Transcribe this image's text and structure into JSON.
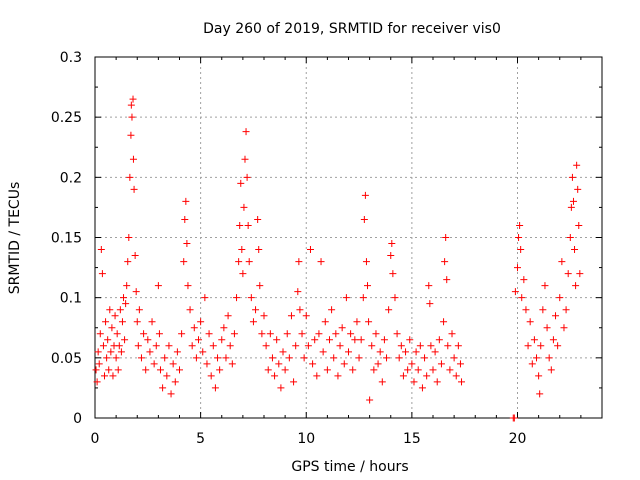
{
  "chart_data": {
    "type": "scatter",
    "title": "Day 260 of 2019, SRMTID for receiver vis0",
    "xlabel": "GPS time / hours",
    "ylabel": "SRMTID / TECUs",
    "xlim": [
      0,
      24
    ],
    "ylim": [
      0,
      0.3
    ],
    "xticks": [
      0,
      5,
      10,
      15,
      20
    ],
    "xtick_labels": [
      "0",
      "5",
      "10",
      "15",
      "20"
    ],
    "yticks": [
      0,
      0.05,
      0.1,
      0.15,
      0.2,
      0.25,
      0.3
    ],
    "ytick_labels": [
      "0",
      "0.05",
      "0.1",
      "0.15",
      "0.2",
      "0.25",
      "0.3"
    ],
    "grid": true,
    "marker": "+",
    "color": "#ff0000",
    "series": [
      {
        "name": "SRMTID",
        "points": [
          [
            0.05,
            0.04
          ],
          [
            0.1,
            0.03
          ],
          [
            0.15,
            0.055
          ],
          [
            0.2,
            0.045
          ],
          [
            0.25,
            0.07
          ],
          [
            0.3,
            0.14
          ],
          [
            0.35,
            0.12
          ],
          [
            0.4,
            0.06
          ],
          [
            0.45,
            0.035
          ],
          [
            0.5,
            0.08
          ],
          [
            0.55,
            0.05
          ],
          [
            0.6,
            0.065
          ],
          [
            0.65,
            0.04
          ],
          [
            0.7,
            0.09
          ],
          [
            0.75,
            0.055
          ],
          [
            0.8,
            0.075
          ],
          [
            0.85,
            0.035
          ],
          [
            0.9,
            0.06
          ],
          [
            0.95,
            0.085
          ],
          [
            1.0,
            0.05
          ],
          [
            1.05,
            0.07
          ],
          [
            1.1,
            0.04
          ],
          [
            1.15,
            0.06
          ],
          [
            1.2,
            0.09
          ],
          [
            1.25,
            0.055
          ],
          [
            1.3,
            0.08
          ],
          [
            1.35,
            0.1
          ],
          [
            1.4,
            0.065
          ],
          [
            1.45,
            0.095
          ],
          [
            1.5,
            0.11
          ],
          [
            1.55,
            0.13
          ],
          [
            1.6,
            0.15
          ],
          [
            1.65,
            0.2
          ],
          [
            1.7,
            0.235
          ],
          [
            1.72,
            0.26
          ],
          [
            1.75,
            0.25
          ],
          [
            1.8,
            0.265
          ],
          [
            1.82,
            0.215
          ],
          [
            1.85,
            0.19
          ],
          [
            1.9,
            0.135
          ],
          [
            1.95,
            0.105
          ],
          [
            2.0,
            0.08
          ],
          [
            2.05,
            0.06
          ],
          [
            2.1,
            0.09
          ],
          [
            2.2,
            0.05
          ],
          [
            2.3,
            0.07
          ],
          [
            2.4,
            0.04
          ],
          [
            2.5,
            0.065
          ],
          [
            2.6,
            0.055
          ],
          [
            2.7,
            0.08
          ],
          [
            2.8,
            0.045
          ],
          [
            2.9,
            0.06
          ],
          [
            3.0,
            0.11
          ],
          [
            3.05,
            0.07
          ],
          [
            3.1,
            0.04
          ],
          [
            3.2,
            0.025
          ],
          [
            3.3,
            0.05
          ],
          [
            3.4,
            0.035
          ],
          [
            3.5,
            0.06
          ],
          [
            3.6,
            0.02
          ],
          [
            3.7,
            0.045
          ],
          [
            3.8,
            0.03
          ],
          [
            3.9,
            0.055
          ],
          [
            4.0,
            0.04
          ],
          [
            4.1,
            0.07
          ],
          [
            4.2,
            0.13
          ],
          [
            4.25,
            0.165
          ],
          [
            4.3,
            0.18
          ],
          [
            4.35,
            0.145
          ],
          [
            4.4,
            0.11
          ],
          [
            4.5,
            0.09
          ],
          [
            4.6,
            0.06
          ],
          [
            4.7,
            0.075
          ],
          [
            4.8,
            0.05
          ],
          [
            4.9,
            0.065
          ],
          [
            5.0,
            0.08
          ],
          [
            5.1,
            0.055
          ],
          [
            5.2,
            0.1
          ],
          [
            5.3,
            0.045
          ],
          [
            5.4,
            0.07
          ],
          [
            5.5,
            0.035
          ],
          [
            5.6,
            0.06
          ],
          [
            5.7,
            0.025
          ],
          [
            5.8,
            0.05
          ],
          [
            5.9,
            0.04
          ],
          [
            6.0,
            0.065
          ],
          [
            6.1,
            0.075
          ],
          [
            6.2,
            0.05
          ],
          [
            6.3,
            0.085
          ],
          [
            6.4,
            0.06
          ],
          [
            6.5,
            0.045
          ],
          [
            6.6,
            0.07
          ],
          [
            6.7,
            0.1
          ],
          [
            6.8,
            0.13
          ],
          [
            6.85,
            0.16
          ],
          [
            6.9,
            0.195
          ],
          [
            6.95,
            0.14
          ],
          [
            7.0,
            0.12
          ],
          [
            7.05,
            0.175
          ],
          [
            7.1,
            0.215
          ],
          [
            7.15,
            0.238
          ],
          [
            7.2,
            0.2
          ],
          [
            7.25,
            0.16
          ],
          [
            7.3,
            0.13
          ],
          [
            7.4,
            0.1
          ],
          [
            7.5,
            0.08
          ],
          [
            7.6,
            0.09
          ],
          [
            7.7,
            0.165
          ],
          [
            7.75,
            0.14
          ],
          [
            7.8,
            0.11
          ],
          [
            7.9,
            0.07
          ],
          [
            8.0,
            0.085
          ],
          [
            8.1,
            0.06
          ],
          [
            8.2,
            0.04
          ],
          [
            8.3,
            0.07
          ],
          [
            8.4,
            0.05
          ],
          [
            8.5,
            0.035
          ],
          [
            8.6,
            0.065
          ],
          [
            8.7,
            0.045
          ],
          [
            8.8,
            0.025
          ],
          [
            8.9,
            0.055
          ],
          [
            9.0,
            0.04
          ],
          [
            9.1,
            0.07
          ],
          [
            9.2,
            0.05
          ],
          [
            9.3,
            0.085
          ],
          [
            9.4,
            0.03
          ],
          [
            9.5,
            0.06
          ],
          [
            9.6,
            0.105
          ],
          [
            9.65,
            0.13
          ],
          [
            9.7,
            0.09
          ],
          [
            9.8,
            0.07
          ],
          [
            9.9,
            0.05
          ],
          [
            10.0,
            0.085
          ],
          [
            10.1,
            0.06
          ],
          [
            10.2,
            0.14
          ],
          [
            10.3,
            0.045
          ],
          [
            10.4,
            0.065
          ],
          [
            10.5,
            0.035
          ],
          [
            10.6,
            0.07
          ],
          [
            10.7,
            0.13
          ],
          [
            10.8,
            0.055
          ],
          [
            10.9,
            0.08
          ],
          [
            11.0,
            0.04
          ],
          [
            11.1,
            0.065
          ],
          [
            11.2,
            0.09
          ],
          [
            11.3,
            0.05
          ],
          [
            11.4,
            0.07
          ],
          [
            11.5,
            0.035
          ],
          [
            11.6,
            0.06
          ],
          [
            11.7,
            0.075
          ],
          [
            11.8,
            0.045
          ],
          [
            11.9,
            0.1
          ],
          [
            12.0,
            0.055
          ],
          [
            12.1,
            0.07
          ],
          [
            12.2,
            0.04
          ],
          [
            12.3,
            0.065
          ],
          [
            12.4,
            0.08
          ],
          [
            12.5,
            0.05
          ],
          [
            12.6,
            0.065
          ],
          [
            12.7,
            0.1
          ],
          [
            12.75,
            0.165
          ],
          [
            12.8,
            0.185
          ],
          [
            12.85,
            0.13
          ],
          [
            12.9,
            0.11
          ],
          [
            12.95,
            0.08
          ],
          [
            13.0,
            0.015
          ],
          [
            13.1,
            0.06
          ],
          [
            13.2,
            0.04
          ],
          [
            13.3,
            0.07
          ],
          [
            13.4,
            0.045
          ],
          [
            13.5,
            0.055
          ],
          [
            13.6,
            0.03
          ],
          [
            13.7,
            0.065
          ],
          [
            13.8,
            0.05
          ],
          [
            13.9,
            0.09
          ],
          [
            14.0,
            0.135
          ],
          [
            14.05,
            0.145
          ],
          [
            14.1,
            0.12
          ],
          [
            14.2,
            0.1
          ],
          [
            14.3,
            0.07
          ],
          [
            14.4,
            0.05
          ],
          [
            14.5,
            0.06
          ],
          [
            14.6,
            0.035
          ],
          [
            14.7,
            0.055
          ],
          [
            14.8,
            0.04
          ],
          [
            14.9,
            0.065
          ],
          [
            15.0,
            0.045
          ],
          [
            15.1,
            0.03
          ],
          [
            15.2,
            0.055
          ],
          [
            15.3,
            0.04
          ],
          [
            15.4,
            0.06
          ],
          [
            15.5,
            0.025
          ],
          [
            15.6,
            0.05
          ],
          [
            15.7,
            0.035
          ],
          [
            15.8,
            0.11
          ],
          [
            15.85,
            0.095
          ],
          [
            15.9,
            0.06
          ],
          [
            16.0,
            0.04
          ],
          [
            16.1,
            0.055
          ],
          [
            16.2,
            0.03
          ],
          [
            16.3,
            0.065
          ],
          [
            16.4,
            0.045
          ],
          [
            16.5,
            0.08
          ],
          [
            16.55,
            0.13
          ],
          [
            16.6,
            0.15
          ],
          [
            16.65,
            0.115
          ],
          [
            16.7,
            0.06
          ],
          [
            16.8,
            0.04
          ],
          [
            16.9,
            0.07
          ],
          [
            17.0,
            0.05
          ],
          [
            17.1,
            0.035
          ],
          [
            17.2,
            0.06
          ],
          [
            17.3,
            0.045
          ],
          [
            17.35,
            0.03
          ],
          [
            19.8,
            0.0
          ],
          [
            19.85,
            0.0
          ],
          [
            19.9,
            0.105
          ],
          [
            20.0,
            0.125
          ],
          [
            20.05,
            0.15
          ],
          [
            20.1,
            0.16
          ],
          [
            20.15,
            0.14
          ],
          [
            20.2,
            0.1
          ],
          [
            20.3,
            0.115
          ],
          [
            20.4,
            0.09
          ],
          [
            20.5,
            0.06
          ],
          [
            20.6,
            0.08
          ],
          [
            20.7,
            0.045
          ],
          [
            20.8,
            0.065
          ],
          [
            20.9,
            0.05
          ],
          [
            21.0,
            0.035
          ],
          [
            21.05,
            0.02
          ],
          [
            21.1,
            0.06
          ],
          [
            21.2,
            0.09
          ],
          [
            21.3,
            0.11
          ],
          [
            21.4,
            0.075
          ],
          [
            21.5,
            0.05
          ],
          [
            21.6,
            0.04
          ],
          [
            21.7,
            0.065
          ],
          [
            21.8,
            0.085
          ],
          [
            21.9,
            0.06
          ],
          [
            22.0,
            0.1
          ],
          [
            22.1,
            0.13
          ],
          [
            22.2,
            0.075
          ],
          [
            22.3,
            0.09
          ],
          [
            22.4,
            0.12
          ],
          [
            22.5,
            0.15
          ],
          [
            22.55,
            0.175
          ],
          [
            22.6,
            0.2
          ],
          [
            22.65,
            0.18
          ],
          [
            22.7,
            0.14
          ],
          [
            22.75,
            0.11
          ],
          [
            22.8,
            0.21
          ],
          [
            22.85,
            0.19
          ],
          [
            22.9,
            0.16
          ],
          [
            22.95,
            0.12
          ]
        ]
      }
    ]
  }
}
